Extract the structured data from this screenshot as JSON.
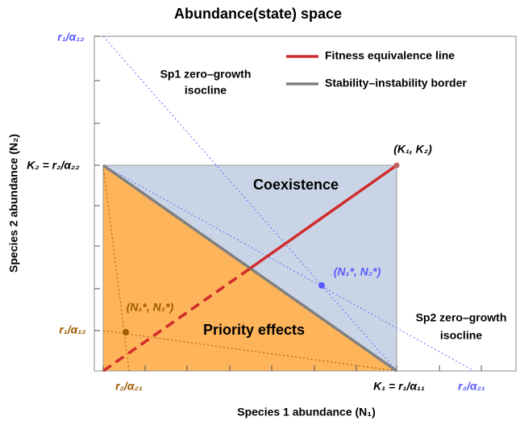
{
  "title": "Abundance(state) space",
  "x_axis_label": "Species 1 abundance (N₁)",
  "y_axis_label": "Species 2 abundance (N₂)",
  "legend": [
    "Fitness equivalence line",
    "Stability–instability border"
  ],
  "labels": {
    "top_left": "r₁/α₁₂",
    "k2": "K₂ = r₂/α₂₂",
    "k_corner": "(K₁, K₂)",
    "orange_y": "r₁/α₁₂",
    "orange_x": "r₂/α₂₁",
    "k1": "K₁ = r₁/α₁₁",
    "blue_x": "r₂/α₂₁",
    "blue_eq": "(N₁*, N₂*)",
    "orange_eq": "(N₁*, N₂*)",
    "sp1": [
      "Sp1 zero–growth",
      "isocline"
    ],
    "sp2": [
      "Sp2 zero–growth",
      "isocline"
    ],
    "coexistence": "Coexistence",
    "priority": "Priority effects"
  }
}
